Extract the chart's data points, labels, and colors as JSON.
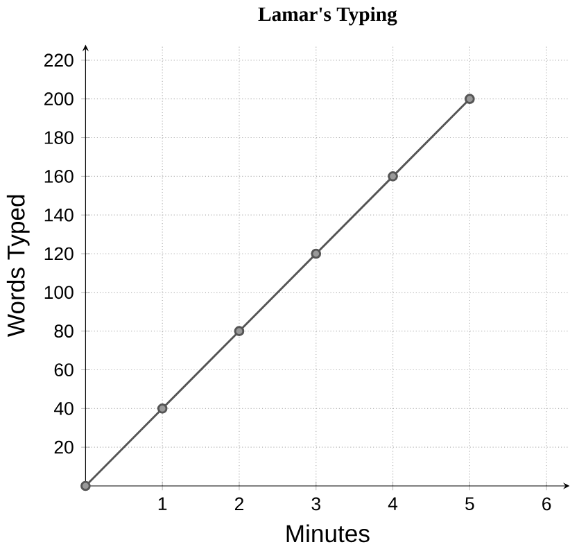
{
  "chart_data": {
    "type": "line",
    "title": "Lamar's Typing",
    "xlabel": "Minutes",
    "ylabel": "Words Typed",
    "x": [
      0,
      1,
      2,
      3,
      4,
      5
    ],
    "series": [
      {
        "color": "#555555",
        "values": [
          0,
          40,
          80,
          120,
          160,
          200
        ]
      }
    ],
    "xlim": [
      0,
      6.3
    ],
    "xticks": [
      1,
      2,
      3,
      4,
      5,
      6
    ],
    "ylim": [
      0,
      228
    ],
    "yticks": [
      20,
      40,
      60,
      80,
      100,
      120,
      140,
      160,
      180,
      200,
      220
    ],
    "grid": true,
    "marker": "circle",
    "line_style": "solid"
  }
}
